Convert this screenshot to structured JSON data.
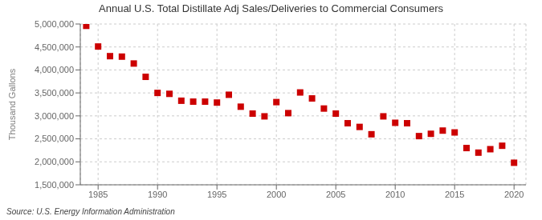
{
  "chart_data": {
    "type": "scatter",
    "title": "Annual U.S. Total Distillate Adj Sales/Deliveries to Commercial Consumers",
    "ylabel": "Thousand Gallons",
    "source": "Source: U.S. Energy Information Administration",
    "x": [
      1984,
      1985,
      1986,
      1987,
      1988,
      1989,
      1990,
      1991,
      1992,
      1993,
      1994,
      1995,
      1996,
      1997,
      1998,
      1999,
      2000,
      2001,
      2002,
      2003,
      2004,
      2005,
      2006,
      2007,
      2008,
      2009,
      2010,
      2011,
      2012,
      2013,
      2014,
      2015,
      2016,
      2017,
      2018,
      2019,
      2020
    ],
    "values": [
      4960000,
      4510000,
      4300000,
      4290000,
      4140000,
      3850000,
      3500000,
      3480000,
      3330000,
      3310000,
      3310000,
      3290000,
      3460000,
      3200000,
      3050000,
      2990000,
      3300000,
      3060000,
      3510000,
      3380000,
      3160000,
      3050000,
      2840000,
      2760000,
      2600000,
      2990000,
      2850000,
      2840000,
      2560000,
      2610000,
      2680000,
      2640000,
      2300000,
      2200000,
      2275000,
      2350000,
      1980000
    ],
    "color": "#cc0000",
    "marker": "square",
    "xlim": [
      1983.5,
      2021
    ],
    "xticks": [
      1985,
      1990,
      1995,
      2000,
      2005,
      2010,
      2015,
      2020
    ],
    "ylim": [
      1500000,
      5000000
    ],
    "yticks": [
      {
        "value": 1500000,
        "label": "1,500,000"
      },
      {
        "value": 2000000,
        "label": "2,000,000"
      },
      {
        "value": 2500000,
        "label": "2,500,000"
      },
      {
        "value": 3000000,
        "label": "3,000,000"
      },
      {
        "value": 3500000,
        "label": "3,500,000"
      },
      {
        "value": 4000000,
        "label": "4,000,000"
      },
      {
        "value": 4500000,
        "label": "4,500,000"
      },
      {
        "value": 5000000,
        "label": "5,000,000"
      }
    ],
    "grid": true
  }
}
